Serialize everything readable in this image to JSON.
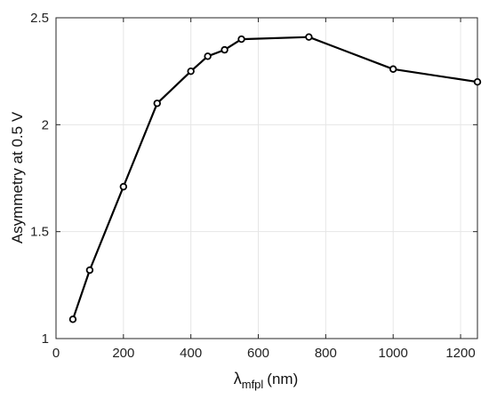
{
  "chart_data": {
    "type": "line",
    "x": [
      50,
      100,
      200,
      300,
      400,
      450,
      500,
      550,
      750,
      1000,
      1250
    ],
    "series": [
      {
        "values": [
          1.09,
          1.32,
          1.71,
          2.1,
          2.25,
          2.32,
          2.35,
          2.4,
          2.41,
          2.26,
          2.2
        ]
      }
    ],
    "xlabel": {
      "symbol": "λ",
      "subscript": "mfpl",
      "units": "(nm)"
    },
    "ylabel": "Asymmetry at 0.5 V",
    "xlim": [
      0,
      1250
    ],
    "ylim": [
      1,
      2.5
    ],
    "xticks": [
      0,
      200,
      400,
      600,
      800,
      1000,
      1200
    ],
    "yticks": [
      1,
      1.5,
      2,
      2.5
    ],
    "ytick_labels": [
      "1",
      "1.5",
      "2",
      "2.5"
    ],
    "grid": true,
    "marker": "open-circle",
    "line_color": "#000000",
    "grid_color": "#e6e6e6"
  }
}
